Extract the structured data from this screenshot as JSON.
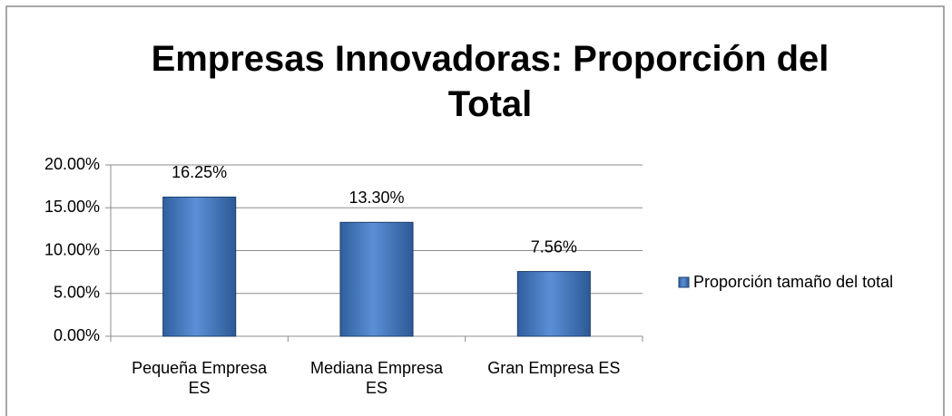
{
  "chart_data": {
    "type": "bar",
    "title": "Empresas Innovadoras: Proporción del Total",
    "categories": [
      "Pequeña Empresa ES",
      "Mediana Empresa ES",
      "Gran Empresa ES"
    ],
    "series": [
      {
        "name": "Proporción tamaño del total",
        "color": "#4f81bd",
        "values": [
          16.25,
          13.3,
          7.56
        ],
        "value_labels": [
          "16.25%",
          "13.30%",
          "7.56%"
        ]
      }
    ],
    "ylim": [
      0,
      20
    ],
    "yticks": [
      {
        "value": 0,
        "label": "0.00%"
      },
      {
        "value": 5,
        "label": "5.00%"
      },
      {
        "value": 10,
        "label": "10.00%"
      },
      {
        "value": 15,
        "label": "15.00%"
      },
      {
        "value": 20,
        "label": "20.00%"
      }
    ],
    "grid": true,
    "legend": "right"
  }
}
